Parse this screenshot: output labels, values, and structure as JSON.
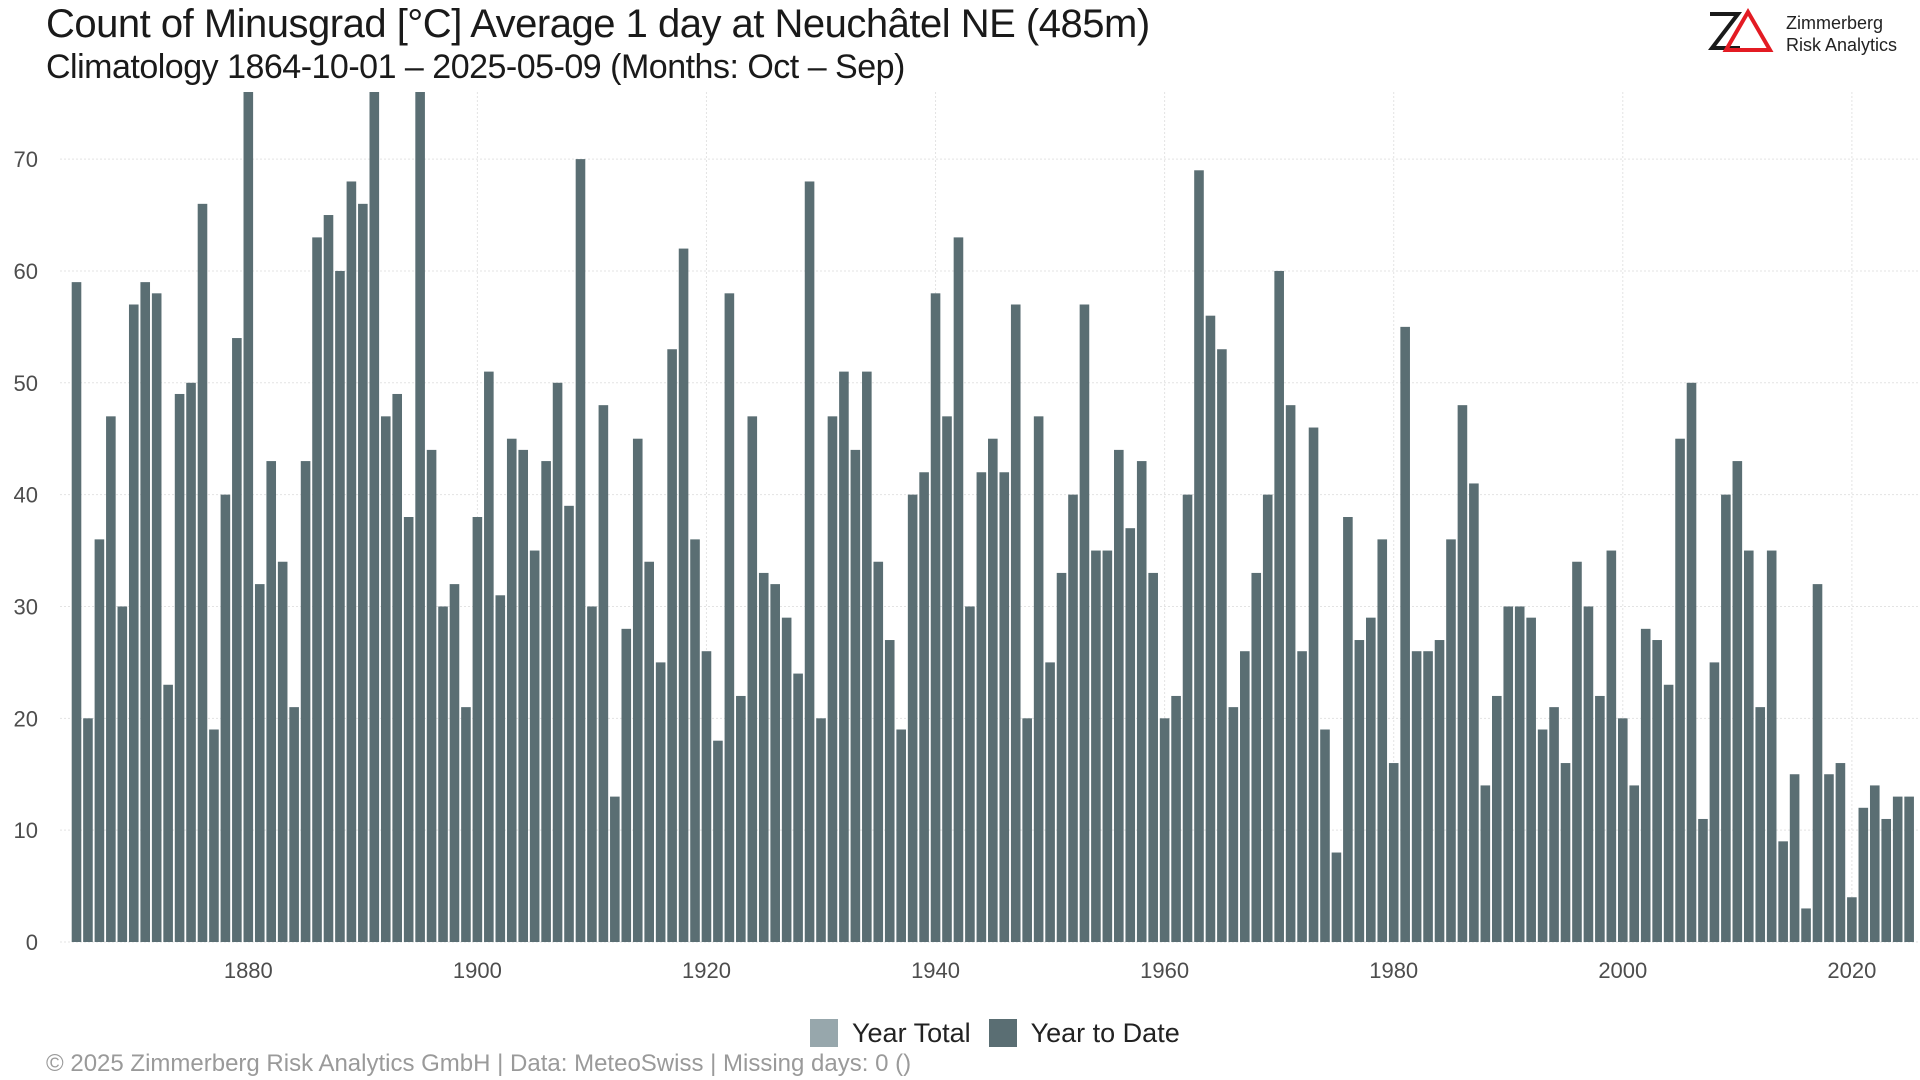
{
  "header": {
    "title": "Count of Minusgrad [°C] Average 1 day at Neuchâtel  NE (485m)",
    "subtitle": "Climatology 1864-10-01 – 2025-05-09 (Months: Oct – Sep)"
  },
  "logo": {
    "mark": "ZΔ",
    "line1": "Zimmerberg",
    "line2": "Risk Analytics"
  },
  "legend": {
    "items": [
      {
        "label": "Year Total",
        "color": "#97a7ac"
      },
      {
        "label": "Year to Date",
        "color": "#5a6e73"
      }
    ]
  },
  "footer": {
    "text": "©  2025 Zimmerberg Risk Analytics GmbH | Data: MeteoSwiss | Missing days: 0 ()"
  },
  "chart_data": {
    "type": "bar",
    "x_start_year": 1865,
    "values": [
      59,
      20,
      36,
      47,
      30,
      57,
      59,
      58,
      23,
      49,
      50,
      66,
      19,
      40,
      54,
      76,
      32,
      43,
      34,
      21,
      43,
      63,
      65,
      60,
      68,
      66,
      76,
      47,
      49,
      38,
      76,
      44,
      30,
      32,
      21,
      38,
      51,
      31,
      45,
      44,
      35,
      43,
      50,
      39,
      70,
      30,
      48,
      13,
      28,
      45,
      34,
      25,
      53,
      62,
      36,
      26,
      18,
      58,
      22,
      47,
      33,
      32,
      29,
      24,
      68,
      20,
      47,
      51,
      44,
      51,
      34,
      27,
      19,
      40,
      42,
      58,
      47,
      63,
      30,
      42,
      45,
      42,
      57,
      20,
      47,
      25,
      33,
      40,
      57,
      35,
      35,
      44,
      37,
      43,
      33,
      20,
      22,
      40,
      69,
      56,
      53,
      21,
      26,
      33,
      40,
      60,
      48,
      26,
      46,
      19,
      8,
      38,
      27,
      29,
      36,
      16,
      55,
      26,
      26,
      27,
      36,
      48,
      41,
      14,
      22,
      30,
      30,
      29,
      19,
      21,
      16,
      34,
      30,
      22,
      35,
      20,
      14,
      28,
      27,
      23,
      45,
      50,
      11,
      25,
      40,
      43,
      35,
      21,
      35,
      9,
      15,
      3,
      32,
      15,
      16,
      4,
      12,
      14,
      11,
      13,
      13
    ],
    "series": [
      {
        "name": "Year to Date",
        "color": "#5a6e73"
      }
    ],
    "x_ticks": [
      1880,
      1900,
      1920,
      1940,
      1960,
      1980,
      2000,
      2020
    ],
    "y_ticks": [
      0,
      10,
      20,
      30,
      40,
      50,
      60,
      70
    ],
    "ylim": [
      0,
      76
    ],
    "grid": true,
    "legend_position": "bottom"
  }
}
